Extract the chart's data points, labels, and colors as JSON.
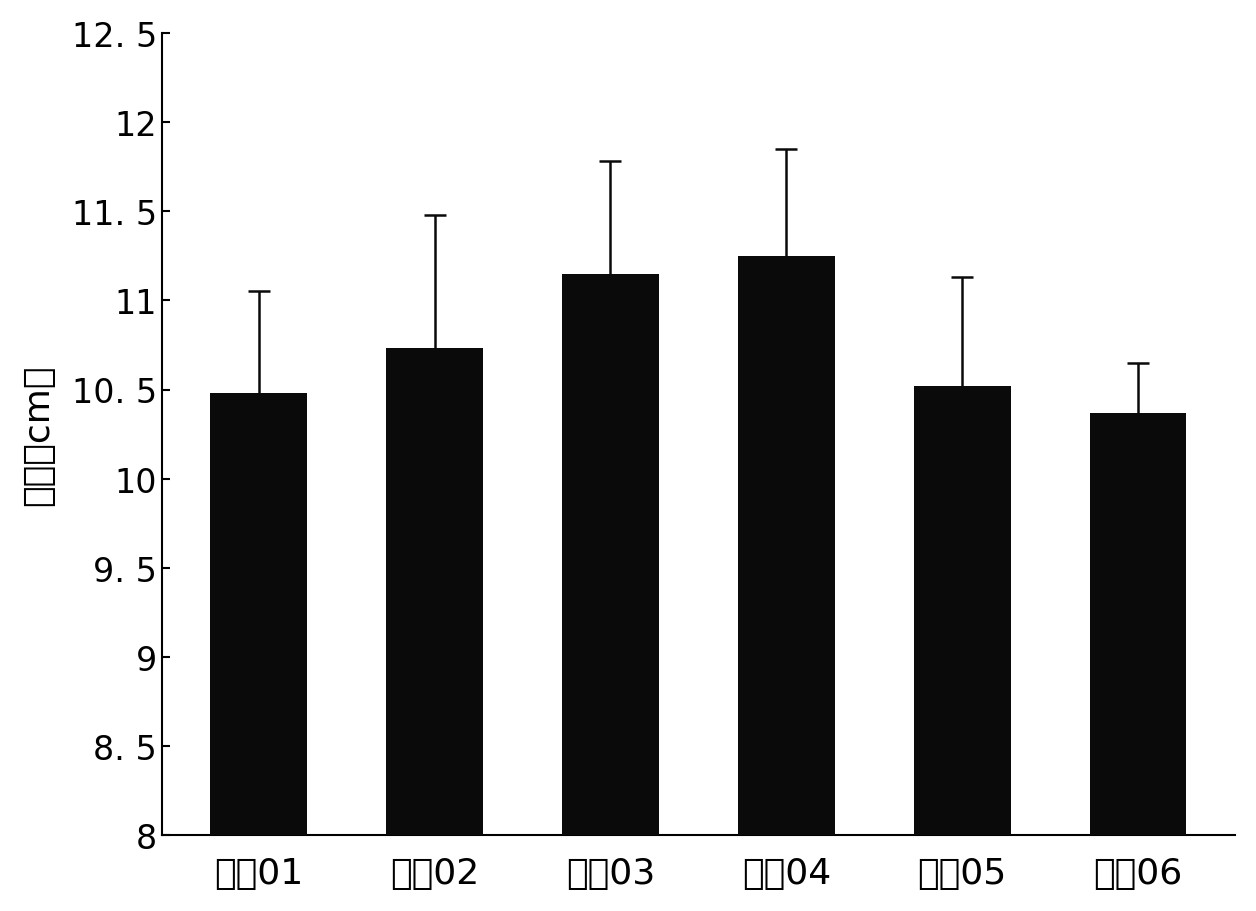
{
  "categories": [
    "处琒01",
    "处琒02",
    "处琒03",
    "处琒04",
    "处琒05",
    "处琒06"
  ],
  "values": [
    10.48,
    10.73,
    11.15,
    11.25,
    10.52,
    10.37
  ],
  "errors": [
    0.57,
    0.75,
    0.63,
    0.6,
    0.61,
    0.28
  ],
  "bar_color": "#0a0a0a",
  "error_color": "#0a0a0a",
  "ylabel": "株高（cm）",
  "ylim": [
    8.0,
    12.5
  ],
  "yticks": [
    8.0,
    8.5,
    9.0,
    9.5,
    10.0,
    10.5,
    11.0,
    11.5,
    12.0,
    12.5
  ],
  "background_color": "#ffffff",
  "bar_width": 0.55,
  "bar_bottom": 8.0,
  "ylabel_fontsize": 26,
  "tick_fontsize": 24,
  "xlabel_fontsize": 26
}
